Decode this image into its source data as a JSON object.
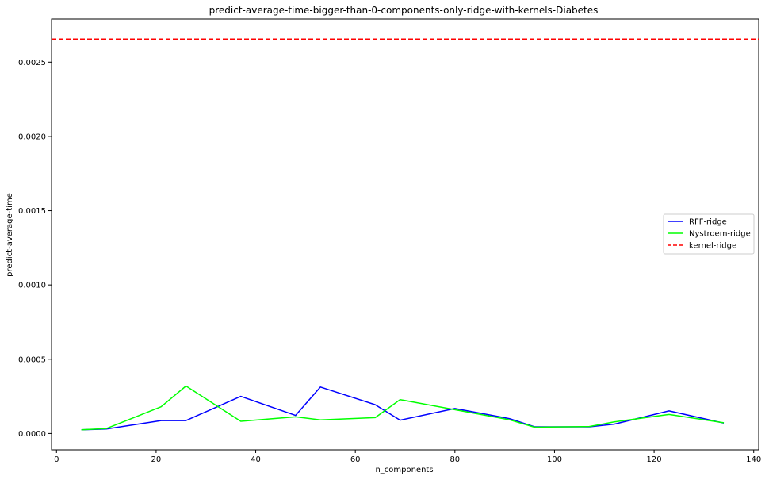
{
  "chart_data": {
    "type": "line",
    "title": "predict-average-time-bigger-than-0-components-only-ridge-with-kernels-Diabetes",
    "xlabel": "n_components",
    "ylabel": "predict-average-time",
    "xlim": [
      -1,
      141
    ],
    "ylim": [
      -0.00011,
      0.00279
    ],
    "xticks": [
      0,
      20,
      40,
      60,
      80,
      100,
      120,
      140
    ],
    "yticks": [
      0.0,
      0.0005,
      0.001,
      0.0015,
      0.002,
      0.0025
    ],
    "xtick_labels": [
      "0",
      "20",
      "40",
      "60",
      "80",
      "100",
      "120",
      "140"
    ],
    "ytick_labels": [
      "0.0000",
      "0.0005",
      "0.0010",
      "0.0015",
      "0.0020",
      "0.0025"
    ],
    "grid": false,
    "legend_position": "center-right",
    "series": [
      {
        "name": "RFF-ridge",
        "color": "#0000ff",
        "style": "solid",
        "x": [
          5,
          10,
          21,
          26,
          37,
          48,
          53,
          64,
          69,
          80,
          91,
          96,
          107,
          112,
          123,
          134
        ],
        "y": [
          2.5e-05,
          3e-05,
          8.7e-05,
          8.7e-05,
          0.00025,
          0.000122,
          0.000313,
          0.000194,
          9e-05,
          0.000168,
          0.0001,
          4.5e-05,
          4.5e-05,
          6.3e-05,
          0.000152,
          7e-05
        ]
      },
      {
        "name": "Nystroem-ridge",
        "color": "#00ff00",
        "style": "solid",
        "x": [
          5,
          10,
          21,
          26,
          37,
          48,
          53,
          64,
          69,
          80,
          91,
          96,
          107,
          112,
          123,
          134
        ],
        "y": [
          2.5e-05,
          3.3e-05,
          0.00018,
          0.00032,
          8.2e-05,
          0.000112,
          9.2e-05,
          0.000107,
          0.000228,
          0.00016,
          9.2e-05,
          4.2e-05,
          4.7e-05,
          7.8e-05,
          0.000128,
          7.2e-05
        ]
      },
      {
        "name": "kernel-ridge",
        "color": "#ff0000",
        "style": "dashed",
        "y_constant": 0.002655
      }
    ]
  }
}
